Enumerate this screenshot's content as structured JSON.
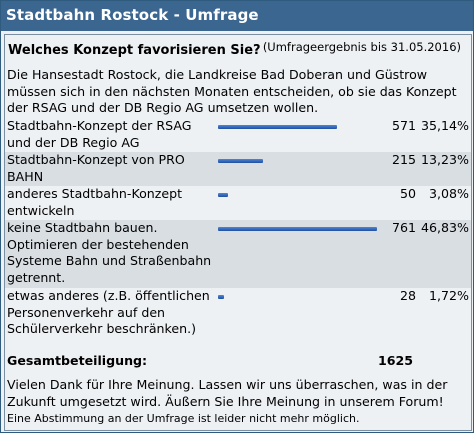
{
  "title": "Stadtbahn Rostock - Umfrage",
  "question": "Welches Konzept favorisieren Sie?",
  "result_date": "(Umfrageergebnis bis 31.05.2016)",
  "intro": "Die Hansestadt Rostock, die Landkreise Bad Doberan und Güstrow müssen sich in den nächsten Monaten entscheiden, ob sie das Konzept der RSAG und der DB Regio AG umsetzen wollen.",
  "options": [
    {
      "label": "Stadtbahn-Konzept der RSAG und der DB Regio AG",
      "count": "571",
      "percent": "35,14%",
      "fraction": 0.3514
    },
    {
      "label": "Stadtbahn-Konzept von PRO BAHN",
      "count": "215",
      "percent": "13,23%",
      "fraction": 0.1323
    },
    {
      "label": "anderes Stadtbahn-Konzept entwickeln",
      "count": "50",
      "percent": "3,08%",
      "fraction": 0.0308
    },
    {
      "label": "keine Stadtbahn bauen. Optimieren der bestehenden Systeme Bahn und Straßenbahn getrennt.",
      "count": "761",
      "percent": "46,83%",
      "fraction": 0.4683
    },
    {
      "label": "etwas anderes (z.B. öffentlichen Personenverkehr auf den Schülerverkehr beschränken.)",
      "count": "28",
      "percent": "1,72%",
      "fraction": 0.0172
    }
  ],
  "total_label": "Gesamtbeteiligung:",
  "total_value": "1625",
  "thanks": "Vielen Dank für Ihre Meinung. Lassen wir uns überraschen, was in der Zukunft umgesetzt wird. Äußern Sie Ihre Meinung in unserem Forum!",
  "closed_note": "Eine Abstimmung an der Umfrage ist leider nicht mehr möglich.",
  "colors": {
    "titlebar": "#3a6690",
    "bar": "#2a5cb0",
    "alt_row": "#d9dee3",
    "background": "#eef1f4"
  }
}
